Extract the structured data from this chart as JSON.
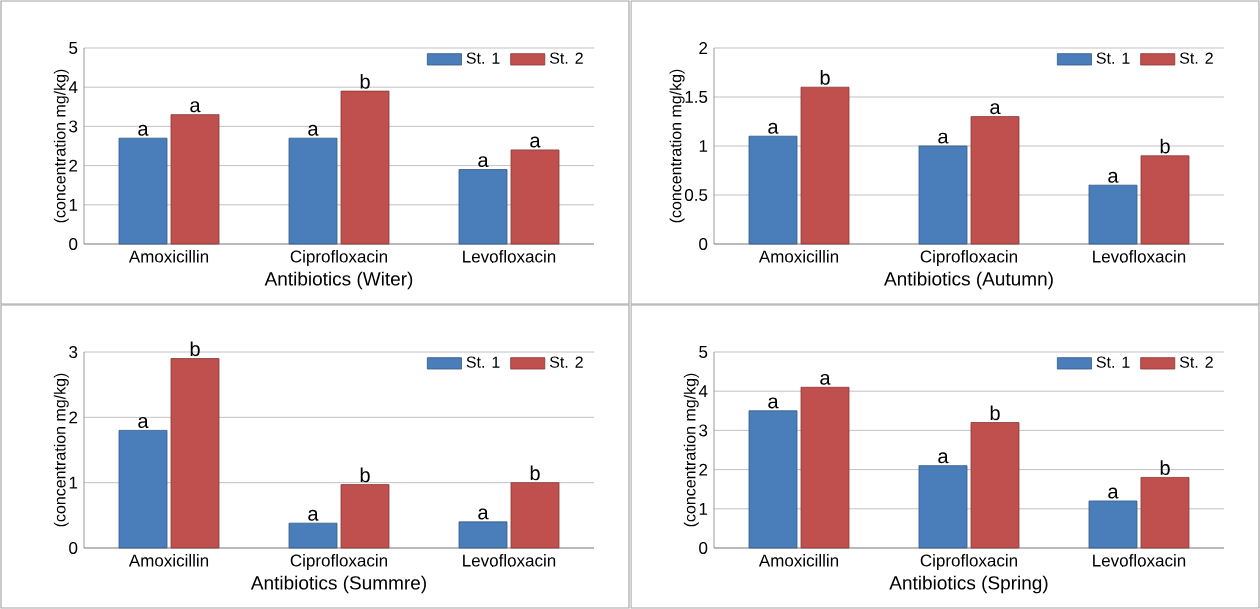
{
  "chart_data": [
    {
      "type": "bar",
      "xlabel": "Antibiotics (Witer)",
      "ylabel": "(concentration mg/kg)",
      "categories": [
        "Amoxicillin",
        "Ciprofloxacin",
        "Levofloxacin"
      ],
      "ylim": [
        0,
        5
      ],
      "yticks": [
        0,
        1,
        2,
        3,
        4,
        5
      ],
      "grid": "y",
      "legend": "top right",
      "series": [
        {
          "name": "St. 1",
          "color": "#4a7ebb",
          "values": [
            2.7,
            2.7,
            1.9
          ],
          "value_labels": [
            "a",
            "a",
            "a"
          ]
        },
        {
          "name": "St. 2",
          "color": "#c0504d",
          "values": [
            3.3,
            3.9,
            2.4
          ],
          "value_labels": [
            "a",
            "b",
            "a"
          ]
        }
      ]
    },
    {
      "type": "bar",
      "xlabel": "Antibiotics (Autumn)",
      "ylabel": "(concentration mg/kg)",
      "categories": [
        "Amoxicillin",
        "Ciprofloxacin",
        "Levofloxacin"
      ],
      "ylim": [
        0,
        2
      ],
      "yticks": [
        0,
        0.5,
        1,
        1.5,
        2
      ],
      "grid": "y",
      "legend": "top right",
      "series": [
        {
          "name": "St. 1",
          "color": "#4a7ebb",
          "values": [
            1.1,
            1.0,
            0.6
          ],
          "value_labels": [
            "a",
            "a",
            "a"
          ]
        },
        {
          "name": "St. 2",
          "color": "#c0504d",
          "values": [
            1.6,
            1.3,
            0.9
          ],
          "value_labels": [
            "b",
            "a",
            "b"
          ]
        }
      ]
    },
    {
      "type": "bar",
      "xlabel": "Antibiotics (Summre)",
      "ylabel": "(concentration mg/kg)",
      "categories": [
        "Amoxicillin",
        "Ciprofloxacin",
        "Levofloxacin"
      ],
      "ylim": [
        0,
        3
      ],
      "yticks": [
        0,
        1,
        2,
        3
      ],
      "grid": "y",
      "legend": "top right",
      "series": [
        {
          "name": "St. 1",
          "color": "#4a7ebb",
          "values": [
            1.8,
            0.38,
            0.4
          ],
          "value_labels": [
            "a",
            "a",
            "a"
          ]
        },
        {
          "name": "St. 2",
          "color": "#c0504d",
          "values": [
            2.9,
            0.97,
            1.0
          ],
          "value_labels": [
            "b",
            "b",
            "b"
          ]
        }
      ]
    },
    {
      "type": "bar",
      "xlabel": "Antibiotics (Spring)",
      "ylabel": "(concentration mg/kg)",
      "categories": [
        "Amoxicillin",
        "Ciprofloxacin",
        "Levofloxacin"
      ],
      "ylim": [
        0,
        5
      ],
      "yticks": [
        0,
        1,
        2,
        3,
        4,
        5
      ],
      "grid": "y",
      "legend": "top right",
      "series": [
        {
          "name": "St. 1",
          "color": "#4a7ebb",
          "values": [
            3.5,
            2.1,
            1.2
          ],
          "value_labels": [
            "a",
            "a",
            "a"
          ]
        },
        {
          "name": "St. 2",
          "color": "#c0504d",
          "values": [
            4.1,
            3.2,
            1.8
          ],
          "value_labels": [
            "a",
            "b",
            "b"
          ]
        }
      ]
    }
  ]
}
